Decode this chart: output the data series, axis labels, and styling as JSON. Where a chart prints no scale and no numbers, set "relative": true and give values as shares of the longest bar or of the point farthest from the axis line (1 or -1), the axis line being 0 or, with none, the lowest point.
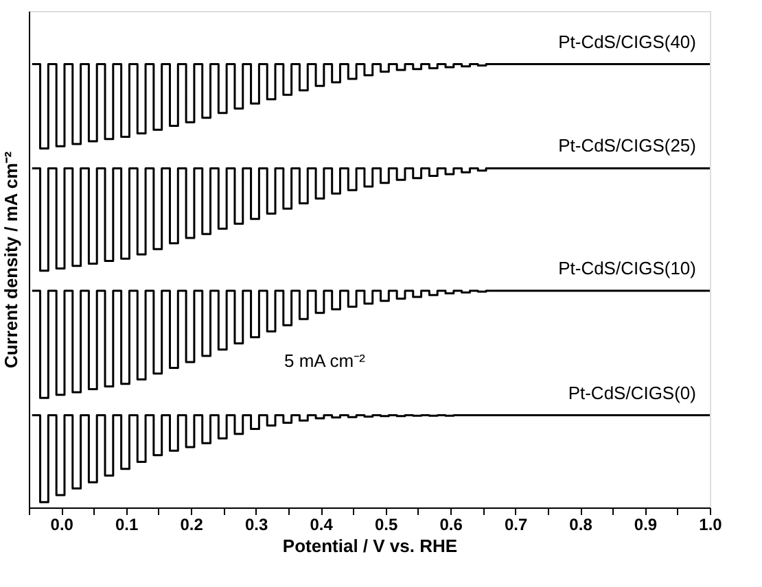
{
  "chart_data": {
    "type": "step",
    "relative": true,
    "xlabel": "Potential / V vs. RHE",
    "ylabel": "Current density / mA cm⁻²",
    "annotations": [
      "5 mA cm⁻²"
    ],
    "xlim": [
      -0.05,
      1.0
    ],
    "xticks": [
      {
        "value": -0.05,
        "label": null
      },
      {
        "value": 0.0,
        "label": "0.0"
      },
      {
        "value": 0.05,
        "label": null
      },
      {
        "value": 0.1,
        "label": "0.1"
      },
      {
        "value": 0.15,
        "label": null
      },
      {
        "value": 0.2,
        "label": "0.2"
      },
      {
        "value": 0.25,
        "label": null
      },
      {
        "value": 0.3,
        "label": "0.3"
      },
      {
        "value": 0.35,
        "label": null
      },
      {
        "value": 0.4,
        "label": "0.4"
      },
      {
        "value": 0.45,
        "label": null
      },
      {
        "value": 0.5,
        "label": "0.5"
      },
      {
        "value": 0.55,
        "label": null
      },
      {
        "value": 0.6,
        "label": "0.6"
      },
      {
        "value": 0.65,
        "label": null
      },
      {
        "value": 0.7,
        "label": "0.7"
      },
      {
        "value": 0.75,
        "label": null
      },
      {
        "value": 0.8,
        "label": "0.8"
      },
      {
        "value": 0.85,
        "label": null
      },
      {
        "value": 0.9,
        "label": "0.9"
      },
      {
        "value": 0.95,
        "label": null
      },
      {
        "value": 1.0,
        "label": "1.0"
      }
    ],
    "tick_labels": "x",
    "grid": false,
    "legend": false,
    "line_style": "solid",
    "marker": "none",
    "x": [
      -0.045,
      -0.0325,
      -0.02,
      -0.0075,
      0.005,
      0.0175,
      0.03,
      0.0425,
      0.055,
      0.0675,
      0.08,
      0.0925,
      0.105,
      0.1175,
      0.13,
      0.1425,
      0.155,
      0.1675,
      0.18,
      0.1925,
      0.205,
      0.2175,
      0.23,
      0.2425,
      0.255,
      0.2675,
      0.28,
      0.2925,
      0.305,
      0.3175,
      0.33,
      0.3425,
      0.355,
      0.3675,
      0.38,
      0.3925,
      0.405,
      0.4175,
      0.43,
      0.4425,
      0.455,
      0.4675,
      0.48,
      0.4925,
      0.505,
      0.5175,
      0.53,
      0.5425,
      0.555,
      0.5675,
      0.58,
      0.5925,
      0.605,
      0.6175,
      0.63,
      0.6425,
      0.655,
      1.0
    ],
    "series": [
      {
        "name": "Pt-CdS/CIGS(40)",
        "color": "#000000",
        "values": [
          1.0,
          0.81,
          1.0,
          0.815,
          1.0,
          0.82,
          1.0,
          0.826,
          1.0,
          0.831,
          1.0,
          0.836,
          1.0,
          0.844,
          1.0,
          0.852,
          1.0,
          0.861,
          1.0,
          0.869,
          1.0,
          0.879,
          1.0,
          0.89,
          1.0,
          0.9,
          1.0,
          0.911,
          1.0,
          0.921,
          1.0,
          0.931,
          1.0,
          0.941,
          1.0,
          0.951,
          1.0,
          0.959,
          1.0,
          0.967,
          1.0,
          0.975,
          1.0,
          0.983,
          1.0,
          0.987,
          1.0,
          0.989,
          1.0,
          0.991,
          1.0,
          0.993,
          1.0,
          0.995,
          1.0,
          0.997,
          1.0,
          1.0
        ]
      },
      {
        "name": "Pt-CdS/CIGS(25)",
        "color": "#000000",
        "values": [
          0.765,
          0.534,
          0.765,
          0.539,
          0.765,
          0.545,
          0.765,
          0.55,
          0.765,
          0.556,
          0.765,
          0.561,
          0.765,
          0.571,
          0.765,
          0.583,
          0.765,
          0.596,
          0.765,
          0.608,
          0.765,
          0.617,
          0.765,
          0.629,
          0.765,
          0.64,
          0.765,
          0.651,
          0.765,
          0.663,
          0.765,
          0.674,
          0.765,
          0.686,
          0.765,
          0.697,
          0.765,
          0.708,
          0.765,
          0.716,
          0.765,
          0.724,
          0.765,
          0.732,
          0.765,
          0.739,
          0.765,
          0.743,
          0.765,
          0.748,
          0.765,
          0.752,
          0.765,
          0.756,
          0.765,
          0.76,
          0.765,
          0.765
        ]
      },
      {
        "name": "Pt-CdS/CIGS(10)",
        "color": "#000000",
        "values": [
          0.489,
          0.247,
          0.489,
          0.254,
          0.489,
          0.26,
          0.489,
          0.267,
          0.489,
          0.273,
          0.489,
          0.279,
          0.489,
          0.289,
          0.489,
          0.302,
          0.489,
          0.315,
          0.489,
          0.328,
          0.489,
          0.342,
          0.489,
          0.356,
          0.489,
          0.37,
          0.489,
          0.384,
          0.489,
          0.397,
          0.489,
          0.411,
          0.489,
          0.425,
          0.489,
          0.439,
          0.489,
          0.447,
          0.489,
          0.453,
          0.489,
          0.46,
          0.489,
          0.466,
          0.489,
          0.471,
          0.489,
          0.475,
          0.489,
          0.479,
          0.489,
          0.483,
          0.489,
          0.485,
          0.489,
          0.487,
          0.489,
          0.489
        ]
      },
      {
        "name": "Pt-CdS/CIGS(0)",
        "color": "#000000",
        "values": [
          0.208,
          0.012,
          0.208,
          0.028,
          0.208,
          0.043,
          0.208,
          0.057,
          0.208,
          0.072,
          0.208,
          0.087,
          0.208,
          0.103,
          0.208,
          0.118,
          0.208,
          0.128,
          0.208,
          0.136,
          0.208,
          0.145,
          0.208,
          0.156,
          0.208,
          0.166,
          0.208,
          0.177,
          0.208,
          0.185,
          0.208,
          0.191,
          0.208,
          0.196,
          0.208,
          0.201,
          0.208,
          0.203,
          0.208,
          0.204,
          0.208,
          0.205,
          0.208,
          0.206,
          0.208,
          0.206,
          0.208,
          0.207,
          0.208,
          0.207,
          0.208,
          0.207,
          0.208,
          0.208,
          0.208,
          0.208,
          0.208,
          0.208
        ]
      }
    ]
  }
}
